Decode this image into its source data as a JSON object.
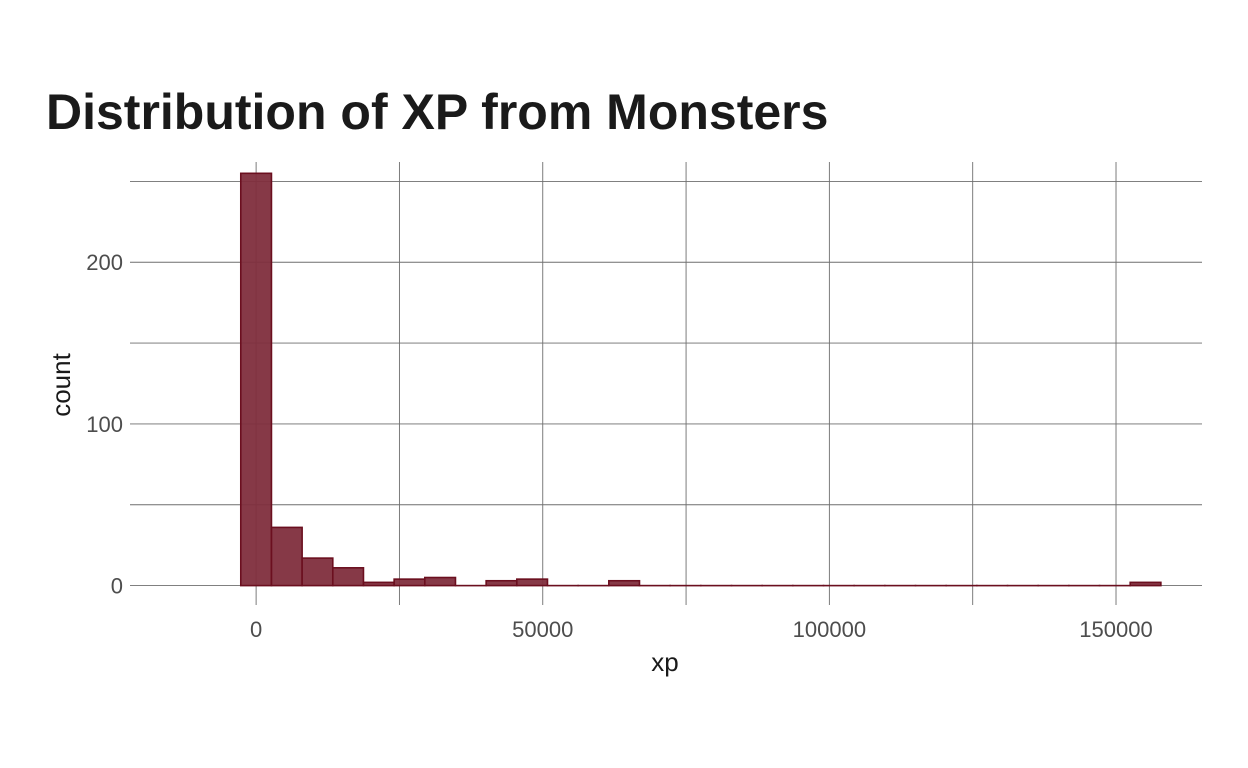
{
  "chart_data": {
    "type": "bar",
    "title": "Distribution of XP from Monsters",
    "xlabel": "xp",
    "ylabel": "count",
    "xlim": [
      -22000,
      165000
    ],
    "ylim": [
      -12,
      262
    ],
    "x_ticks": [
      0,
      50000,
      100000,
      150000
    ],
    "x_tick_labels": [
      "0",
      "50000",
      "100000",
      "150000"
    ],
    "x_minor_gridlines": [
      25000,
      75000,
      125000
    ],
    "y_ticks": [
      0,
      100,
      200
    ],
    "y_tick_labels": [
      "0",
      "100",
      "200"
    ],
    "y_minor_gridlines": [
      50,
      150,
      250
    ],
    "grid": true,
    "bin_width": 5350,
    "bin_centers": [
      0,
      5350,
      10700,
      16050,
      21400,
      26750,
      32100,
      37450,
      42800,
      48150,
      53500,
      58850,
      64200,
      69550,
      74900,
      80250,
      85600,
      90950,
      96300,
      101650,
      107000,
      112350,
      117700,
      123050,
      128400,
      133750,
      139100,
      144450,
      149800,
      155150
    ],
    "counts": [
      255,
      36,
      17,
      11,
      2,
      4,
      5,
      0,
      3,
      4,
      0,
      0,
      3,
      0,
      0,
      0,
      0,
      0,
      0,
      0,
      0,
      0,
      0,
      0,
      0,
      0,
      0,
      0,
      0,
      2
    ],
    "colors": {
      "fill": "#7f2e3d",
      "outline": "#6b0f1f",
      "grid": "#6e6e6e"
    }
  }
}
